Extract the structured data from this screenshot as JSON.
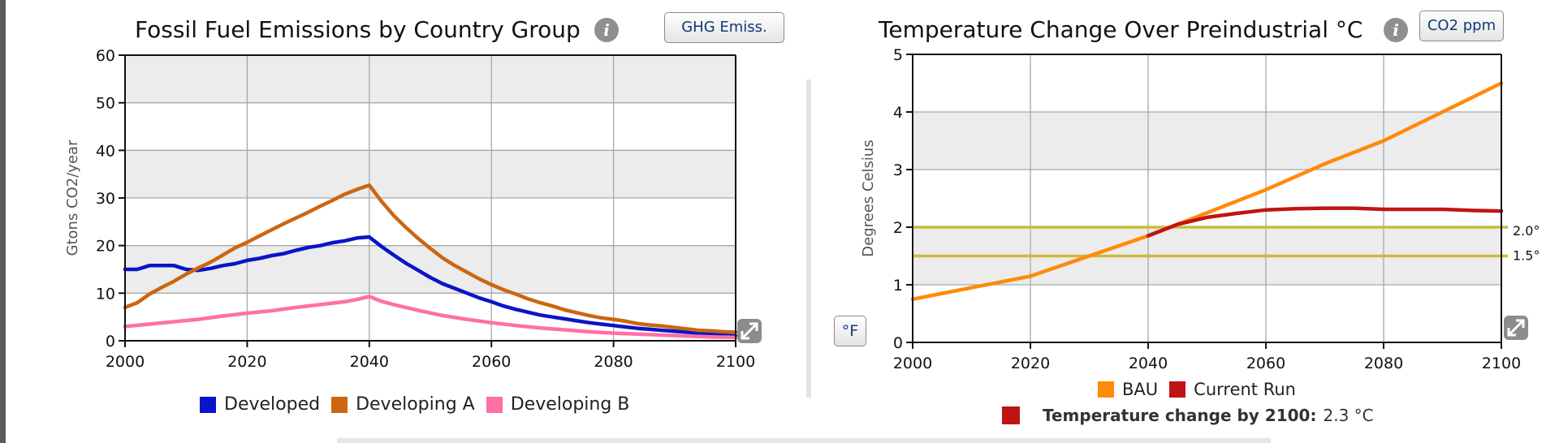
{
  "left_panel": {
    "title": "Fossil Fuel Emissions by Country Group",
    "toggle_button": "GHG Emiss.",
    "info_icon": "info-icon",
    "expand_icon": "expand-icon"
  },
  "right_panel": {
    "title": "Temperature Change Over Preindustrial °C",
    "toggle_button": "CO2 ppm",
    "unit_button": "°F",
    "info_icon": "info-icon",
    "expand_icon": "expand-icon",
    "summary_label": "Temperature change by 2100:",
    "summary_value": "2.3 °C",
    "summary_color": "#c01414"
  },
  "chart_data": [
    {
      "type": "line",
      "title": "Fossil Fuel Emissions by Country Group",
      "xlabel": "",
      "ylabel": "Gtons CO2/year",
      "xlim": [
        2000,
        2100
      ],
      "ylim": [
        0,
        60
      ],
      "xticks": [
        2000,
        2020,
        2040,
        2060,
        2080,
        2100
      ],
      "yticks": [
        0,
        10,
        20,
        30,
        40,
        50,
        60
      ],
      "grid": true,
      "legend_position": "bottom",
      "series": [
        {
          "name": "Developed",
          "color": "#0a14c8",
          "x": [
            2000,
            2002,
            2004,
            2006,
            2008,
            2010,
            2012,
            2014,
            2016,
            2018,
            2020,
            2022,
            2024,
            2026,
            2028,
            2030,
            2032,
            2034,
            2036,
            2038,
            2040,
            2042,
            2044,
            2046,
            2048,
            2050,
            2052,
            2054,
            2056,
            2058,
            2060,
            2062,
            2064,
            2066,
            2068,
            2070,
            2072,
            2074,
            2076,
            2078,
            2080,
            2082,
            2084,
            2086,
            2088,
            2090,
            2092,
            2094,
            2096,
            2098,
            2100
          ],
          "values": [
            15,
            15,
            15.8,
            15.8,
            15.8,
            15,
            14.8,
            15.2,
            15.8,
            16.2,
            16.9,
            17.3,
            17.9,
            18.3,
            19,
            19.6,
            20,
            20.6,
            21,
            21.6,
            21.8,
            19.8,
            18,
            16.3,
            14.8,
            13.3,
            12,
            11,
            10,
            9,
            8.2,
            7.3,
            6.6,
            6,
            5.4,
            5,
            4.6,
            4.2,
            3.8,
            3.5,
            3.2,
            2.9,
            2.6,
            2.4,
            2.2,
            2,
            1.8,
            1.6,
            1.4,
            1.2,
            1
          ]
        },
        {
          "name": "Developing A",
          "color": "#cc6611",
          "x": [
            2000,
            2002,
            2004,
            2006,
            2008,
            2010,
            2012,
            2014,
            2016,
            2018,
            2020,
            2022,
            2024,
            2026,
            2028,
            2030,
            2032,
            2034,
            2036,
            2038,
            2040,
            2042,
            2044,
            2046,
            2048,
            2050,
            2052,
            2054,
            2056,
            2058,
            2060,
            2062,
            2064,
            2066,
            2068,
            2070,
            2072,
            2074,
            2076,
            2078,
            2080,
            2082,
            2084,
            2086,
            2088,
            2090,
            2092,
            2094,
            2096,
            2098,
            2100
          ],
          "values": [
            7,
            8,
            9.8,
            11.2,
            12.5,
            14,
            15.3,
            16.5,
            18,
            19.5,
            20.7,
            22,
            23.3,
            24.6,
            25.8,
            27,
            28.3,
            29.5,
            30.8,
            31.8,
            32.7,
            29.3,
            26.3,
            23.8,
            21.5,
            19.4,
            17.4,
            15.8,
            14.4,
            13,
            11.8,
            10.7,
            9.8,
            8.8,
            8,
            7.3,
            6.5,
            5.9,
            5.3,
            4.8,
            4.5,
            4.1,
            3.6,
            3.3,
            3.1,
            2.8,
            2.5,
            2.2,
            2.1,
            1.9,
            1.8
          ]
        },
        {
          "name": "Developing B",
          "color": "#ff6fa6",
          "x": [
            2000,
            2004,
            2008,
            2012,
            2016,
            2020,
            2024,
            2028,
            2032,
            2036,
            2038,
            2040,
            2042,
            2044,
            2048,
            2052,
            2056,
            2060,
            2064,
            2068,
            2072,
            2076,
            2080,
            2084,
            2088,
            2092,
            2096,
            2100
          ],
          "values": [
            3,
            3.5,
            4,
            4.5,
            5.2,
            5.8,
            6.3,
            7,
            7.6,
            8.2,
            8.7,
            9.3,
            8.3,
            7.6,
            6.4,
            5.3,
            4.5,
            3.8,
            3.2,
            2.7,
            2.3,
            1.9,
            1.6,
            1.4,
            1.2,
            1,
            0.8,
            0.7
          ]
        }
      ]
    },
    {
      "type": "line",
      "title": "Temperature Change Over Preindustrial °C",
      "xlabel": "",
      "ylabel": "Degrees Celsius",
      "xlim": [
        2000,
        2100
      ],
      "ylim": [
        0,
        5
      ],
      "xticks": [
        2000,
        2020,
        2040,
        2060,
        2080,
        2100
      ],
      "yticks": [
        0,
        1,
        2,
        3,
        4,
        5
      ],
      "grid": true,
      "legend_position": "bottom",
      "reference_lines": [
        {
          "value": 2.0,
          "label": "2.0°",
          "color": "#c8bc3c"
        },
        {
          "value": 1.5,
          "label": "1.5°",
          "color": "#c8bc3c"
        }
      ],
      "series": [
        {
          "name": "BAU",
          "color": "#ff8a0a",
          "x": [
            2000,
            2010,
            2020,
            2030,
            2040,
            2050,
            2060,
            2070,
            2080,
            2090,
            2100
          ],
          "values": [
            0.75,
            0.95,
            1.15,
            1.5,
            1.85,
            2.25,
            2.65,
            3.1,
            3.5,
            4.0,
            4.5
          ]
        },
        {
          "name": "Current Run",
          "color": "#c01414",
          "x": [
            2040,
            2045,
            2050,
            2055,
            2060,
            2065,
            2070,
            2075,
            2080,
            2085,
            2090,
            2095,
            2100
          ],
          "values": [
            1.85,
            2.05,
            2.17,
            2.24,
            2.3,
            2.32,
            2.33,
            2.33,
            2.31,
            2.31,
            2.31,
            2.29,
            2.28
          ]
        }
      ]
    }
  ]
}
